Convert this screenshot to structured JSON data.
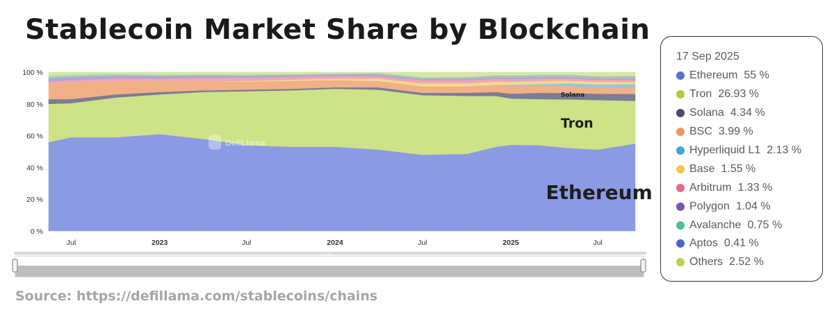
{
  "title": "Stablecoin Market Share by Blockchain",
  "source": "Source: https://defillama.com/stablecoins/chains",
  "watermark": "DefiLlama",
  "legend": {
    "date": "17 Sep 2025",
    "items": [
      {
        "name": "Ethereum",
        "value": "55 %",
        "color": "#5b6fd6"
      },
      {
        "name": "Tron",
        "value": "26.93 %",
        "color": "#a9cc3a"
      },
      {
        "name": "Solana",
        "value": "4.34 %",
        "color": "#4b4a6b"
      },
      {
        "name": "BSC",
        "value": "3.99 %",
        "color": "#f0965f"
      },
      {
        "name": "Hyperliquid L1",
        "value": "2.13 %",
        "color": "#3fa8d8"
      },
      {
        "name": "Base",
        "value": "1.55 %",
        "color": "#f2c744"
      },
      {
        "name": "Arbitrum",
        "value": "1.33 %",
        "color": "#e86a88"
      },
      {
        "name": "Polygon",
        "value": "1.04 %",
        "color": "#7a56b0"
      },
      {
        "name": "Avalanche",
        "value": "0.75 %",
        "color": "#4dbf93"
      },
      {
        "name": "Aptos",
        "value": "0.41 %",
        "color": "#4f62cc"
      },
      {
        "name": "Others",
        "value": "2.52 %",
        "color": "#b4d54b"
      }
    ]
  },
  "chart_data": {
    "type": "area",
    "stacked": true,
    "percent": true,
    "y_ticks": [
      "0 %",
      "20 %",
      "40 %",
      "60 %",
      "80 %",
      "100 %"
    ],
    "x_ticks": [
      {
        "label": "Jul",
        "date": "2022-07-01",
        "bold": false
      },
      {
        "label": "2023",
        "date": "2023-01-01",
        "bold": true
      },
      {
        "label": "Jul",
        "date": "2023-07-01",
        "bold": false
      },
      {
        "label": "2024",
        "date": "2024-01-01",
        "bold": true
      },
      {
        "label": "Jul",
        "date": "2024-07-01",
        "bold": false
      },
      {
        "label": "2025",
        "date": "2025-01-01",
        "bold": true
      },
      {
        "label": "Jul",
        "date": "2025-07-01",
        "bold": false
      }
    ],
    "x_range": [
      "2022-05-15",
      "2025-09-17"
    ],
    "x": [
      "2022-05-15",
      "2022-07-01",
      "2022-10-01",
      "2023-01-01",
      "2023-04-01",
      "2023-07-01",
      "2023-10-01",
      "2024-01-01",
      "2024-04-01",
      "2024-07-01",
      "2024-10-01",
      "2024-12-01",
      "2025-01-01",
      "2025-03-01",
      "2025-05-01",
      "2025-07-01",
      "2025-09-17"
    ],
    "series": [
      {
        "name": "Ethereum",
        "color": "#8b9be3",
        "values": [
          56,
          59,
          59,
          61,
          58,
          54,
          53,
          53,
          51,
          48,
          48.5,
          53,
          54,
          54,
          52,
          51,
          55
        ]
      },
      {
        "name": "Tron",
        "color": "#cee287",
        "values": [
          24,
          21.5,
          25,
          25,
          29.5,
          34,
          35.5,
          36.5,
          37.5,
          37.5,
          36.5,
          32,
          29,
          29,
          30.5,
          31,
          26.93
        ]
      },
      {
        "name": "Solana",
        "color": "#7d7b97",
        "values": [
          3,
          2.5,
          2,
          1.5,
          1,
          1,
          1,
          1,
          1.5,
          1.5,
          2,
          2.5,
          3,
          4,
          4,
          4,
          4.34
        ]
      },
      {
        "name": "BSC",
        "color": "#f2b086",
        "values": [
          10,
          10.5,
          8.5,
          7,
          6,
          5,
          5,
          4.5,
          4,
          4,
          4,
          4.5,
          5,
          4.5,
          4.5,
          4,
          3.99
        ]
      },
      {
        "name": "Hyperliquid L1",
        "color": "#8dc8e6",
        "values": [
          0,
          0,
          0,
          0,
          0,
          0,
          0,
          0,
          0,
          0,
          0,
          0,
          0.5,
          1,
          1.5,
          1.8,
          2.13
        ]
      },
      {
        "name": "Base",
        "color": "#f5d98a",
        "values": [
          0,
          0,
          0,
          0,
          0,
          0.5,
          0.8,
          1,
          1.5,
          2,
          2,
          2,
          2,
          2,
          1.8,
          1.6,
          1.55
        ]
      },
      {
        "name": "Arbitrum",
        "color": "#f0a5b5",
        "values": [
          1.2,
          1.5,
          1.5,
          1.5,
          2,
          2,
          1.8,
          1.5,
          1.5,
          1.8,
          1.8,
          1.8,
          1.7,
          1.5,
          1.4,
          1.3,
          1.33
        ]
      },
      {
        "name": "Polygon",
        "color": "#b7a2d3",
        "values": [
          2,
          2,
          1.8,
          1.5,
          1.3,
          1.2,
          1,
          1,
          1,
          1,
          1,
          1,
          1,
          1,
          1,
          1,
          1.04
        ]
      },
      {
        "name": "Avalanche",
        "color": "#99d7bd",
        "values": [
          1.5,
          1.2,
          1,
          0.8,
          0.7,
          0.7,
          0.6,
          0.6,
          0.6,
          0.6,
          0.6,
          0.6,
          0.7,
          0.7,
          0.7,
          0.7,
          0.75
        ]
      },
      {
        "name": "Aptos",
        "color": "#9aa3dd",
        "values": [
          0,
          0,
          0,
          0,
          0,
          0,
          0,
          0,
          0.2,
          0.3,
          0.4,
          0.4,
          0.4,
          0.4,
          0.4,
          0.4,
          0.41
        ]
      },
      {
        "name": "Others",
        "color": "#d6e7a4",
        "values": [
          2.3,
          1.8,
          1.2,
          1.7,
          1.5,
          1.6,
          1.3,
          0.9,
          0.7,
          3.3,
          3.2,
          2.2,
          2.2,
          1.9,
          1.8,
          2.7,
          2.52
        ]
      }
    ],
    "annotations": [
      {
        "text": "Ethereum",
        "date": "2025-03-15",
        "y": 20,
        "size": "large"
      },
      {
        "text": "Tron",
        "date": "2025-04-15",
        "y": 65,
        "size": "medium"
      },
      {
        "text": "Solana",
        "date": "2025-04-15",
        "y": 84.5,
        "size": "small"
      }
    ]
  }
}
